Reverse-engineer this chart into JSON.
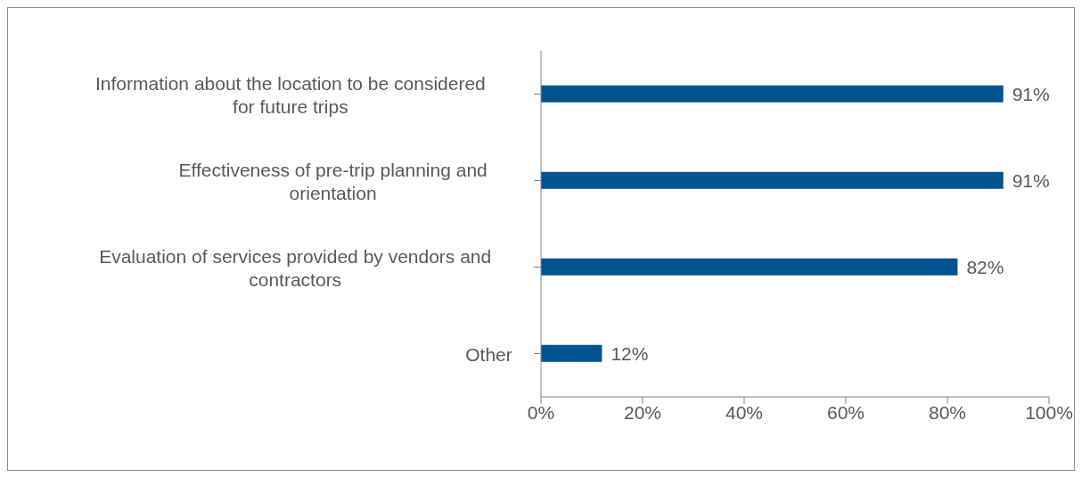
{
  "chart_data": {
    "type": "bar",
    "orientation": "horizontal",
    "categories": [
      "Information about the location to be considered for future trips",
      "Effectiveness of pre-trip planning and orientation",
      "Evaluation of services provided by vendors and contractors",
      "Other"
    ],
    "values": [
      91,
      91,
      82,
      12
    ],
    "value_labels": [
      "91%",
      "91%",
      "82%",
      "12%"
    ],
    "color": "#00538f",
    "xlim": [
      0,
      100
    ],
    "xticks": [
      {
        "value": 0,
        "label": "0%"
      },
      {
        "value": 20,
        "label": "20%"
      },
      {
        "value": 40,
        "label": "40%"
      },
      {
        "value": 60,
        "label": "60%"
      },
      {
        "value": 80,
        "label": "80%"
      },
      {
        "value": 100,
        "label": "100%"
      }
    ],
    "grid": false,
    "legend": false
  }
}
